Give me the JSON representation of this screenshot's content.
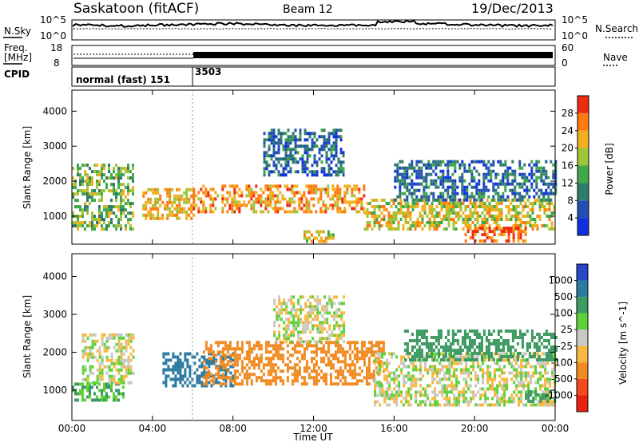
{
  "header": {
    "title": "Saskatoon (fitACF)",
    "beam": "Beam 12",
    "date": "19/Dec/2013"
  },
  "noise_panel": {
    "left_label": "N.Sky",
    "right_label": "N.Search",
    "left_ticks": [
      "10^5",
      "10^0"
    ],
    "right_ticks": [
      "10^5",
      "10^0"
    ]
  },
  "freq_panel": {
    "left_label_line1": "Freq.",
    "left_label_line2": "[MHz]",
    "left_ticks": [
      "18",
      "8"
    ],
    "right_label": "Nave",
    "right_ticks": [
      "60",
      "0"
    ]
  },
  "cpid_panel": {
    "label": "CPID",
    "segment1": "normal (fast) 151",
    "segment2": "3503"
  },
  "colors": {
    "power_scale": [
      "#1030e0",
      "#2050b0",
      "#2f7a6a",
      "#3fa84a",
      "#9ec43a",
      "#f0b020",
      "#ff7a10",
      "#ee2a10"
    ],
    "velocity_scale": [
      "#2848c8",
      "#2c7aa0",
      "#3e9a62",
      "#5ed23a",
      "#c8c8c4",
      "#f8b840",
      "#f08a22",
      "#f04a1a",
      "#e82010"
    ]
  },
  "chart_data": [
    {
      "type": "heatmap",
      "panel": "power",
      "ylabel": "Slant Range [km]",
      "xlabel": "",
      "x_ticks": [
        "00:00",
        "04:00",
        "08:00",
        "12:00",
        "16:00",
        "20:00",
        "00:00"
      ],
      "y_ticks": [
        "1000",
        "2000",
        "3000",
        "4000"
      ],
      "ylim": [
        200,
        4600
      ],
      "xlim_hours": [
        0,
        24
      ],
      "colorbar": {
        "label": "Power [dB]",
        "ticks": [
          "4",
          "8",
          "12",
          "16",
          "20",
          "24",
          "28"
        ],
        "range": [
          0,
          32
        ]
      },
      "echo_regions": [
        {
          "t0": 0.0,
          "t1": 3.0,
          "r0": 600,
          "r1": 2500,
          "value": 16
        },
        {
          "t0": 3.5,
          "t1": 6.0,
          "r0": 900,
          "r1": 1800,
          "value": 22
        },
        {
          "t0": 6.0,
          "t1": 14.5,
          "r0": 1100,
          "r1": 1900,
          "value": 24
        },
        {
          "t0": 9.5,
          "t1": 13.5,
          "r0": 2200,
          "r1": 3500,
          "value": 8
        },
        {
          "t0": 14.5,
          "t1": 24.0,
          "r0": 600,
          "r1": 1500,
          "value": 20
        },
        {
          "t0": 16.0,
          "t1": 24.0,
          "r0": 1500,
          "r1": 2600,
          "value": 8
        },
        {
          "t0": 19.5,
          "t1": 22.5,
          "r0": 250,
          "r1": 700,
          "value": 28
        },
        {
          "t0": 11.5,
          "t1": 13.0,
          "r0": 250,
          "r1": 600,
          "value": 20
        }
      ]
    },
    {
      "type": "heatmap",
      "panel": "velocity",
      "ylabel": "Slant Range [km]",
      "xlabel": "Time UT",
      "x_ticks": [
        "00:00",
        "04:00",
        "08:00",
        "12:00",
        "16:00",
        "20:00",
        "00:00"
      ],
      "y_ticks": [
        "1000",
        "2000",
        "3000",
        "4000"
      ],
      "ylim": [
        200,
        4600
      ],
      "xlim_hours": [
        0,
        24
      ],
      "colorbar": {
        "label": "Velocity [m s^-1]",
        "ticks": [
          "1000",
          "500",
          "100",
          "25",
          "-25",
          "-100",
          "-500",
          "-1000"
        ]
      },
      "echo_regions": [
        {
          "t0": 0.0,
          "t1": 2.5,
          "r0": 700,
          "r1": 1200,
          "value": 100
        },
        {
          "t0": 0.5,
          "t1": 3.0,
          "r0": 1200,
          "r1": 2500,
          "value": 0
        },
        {
          "t0": 4.5,
          "t1": 8.0,
          "r0": 1100,
          "r1": 2000,
          "value": 600
        },
        {
          "t0": 6.5,
          "t1": 15.5,
          "r0": 1200,
          "r1": 2300,
          "value": -300
        },
        {
          "t0": 10.0,
          "t1": 13.5,
          "r0": 2300,
          "r1": 3500,
          "value": 0
        },
        {
          "t0": 15.0,
          "t1": 24.0,
          "r0": 600,
          "r1": 2000,
          "value": 0
        },
        {
          "t0": 16.5,
          "t1": 24.0,
          "r0": 1800,
          "r1": 2600,
          "value": 200
        },
        {
          "t0": 22.5,
          "t1": 24.0,
          "r0": 700,
          "r1": 1000,
          "value": 200
        }
      ]
    }
  ]
}
